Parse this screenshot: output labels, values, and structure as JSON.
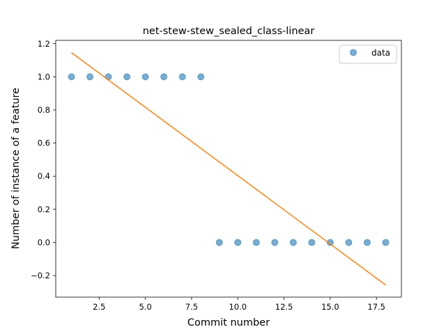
{
  "chart_data": {
    "type": "scatter",
    "title": "net-stew-stew_sealed_class-linear",
    "xlabel": "Commit number",
    "ylabel": "Number of instance of a feature",
    "xlim": [
      0.15,
      18.85
    ],
    "ylim": [
      -0.33,
      1.22
    ],
    "x_ticks": [
      2.5,
      5.0,
      7.5,
      10.0,
      12.5,
      15.0,
      17.5
    ],
    "x_tick_labels": [
      "2.5",
      "5.0",
      "7.5",
      "10.0",
      "12.5",
      "15.0",
      "17.5"
    ],
    "y_ticks": [
      -0.2,
      0.0,
      0.2,
      0.4,
      0.6,
      0.8,
      1.0,
      1.2
    ],
    "y_tick_labels": [
      "−0.2",
      "0.0",
      "0.2",
      "0.4",
      "0.6",
      "0.8",
      "1.0",
      "1.2"
    ],
    "grid": false,
    "legend_position": "top-right",
    "series": [
      {
        "name": "data",
        "kind": "scatter",
        "color": "#1f77b4",
        "x": [
          1,
          2,
          3,
          4,
          5,
          6,
          7,
          8,
          9,
          10,
          11,
          12,
          13,
          14,
          15,
          16,
          17,
          18
        ],
        "y": [
          1,
          1,
          1,
          1,
          1,
          1,
          1,
          1,
          0,
          0,
          0,
          0,
          0,
          0,
          0,
          0,
          0,
          0
        ]
      },
      {
        "kind": "line",
        "color": "#ff7f0e",
        "x": [
          1,
          18
        ],
        "y": [
          1.146,
          -0.257
        ]
      }
    ]
  }
}
